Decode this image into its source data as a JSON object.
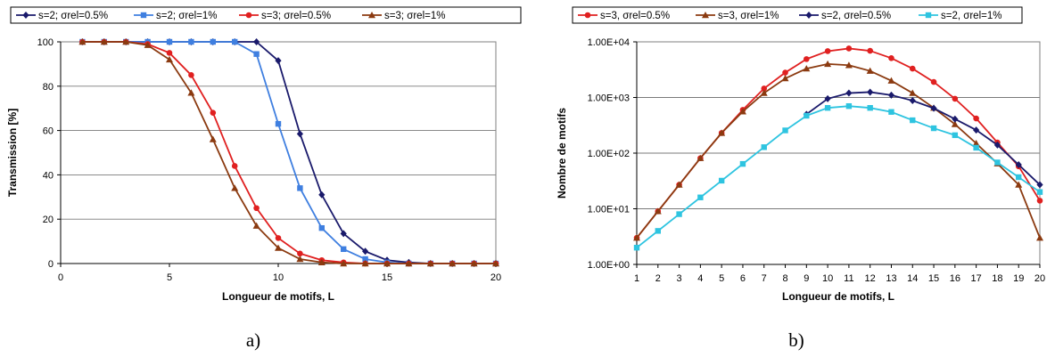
{
  "chart_data": [
    {
      "type": "line",
      "caption": "a)",
      "xlabel": "Longueur de motifs, L",
      "ylabel": "Transmission [%]",
      "xlim": [
        0,
        20
      ],
      "ylim": [
        0,
        100
      ],
      "xticks": [
        0,
        5,
        10,
        15,
        20
      ],
      "yticks": [
        0,
        20,
        40,
        60,
        80,
        100
      ],
      "grid": "horizontal",
      "legend_position": "top",
      "series": [
        {
          "name": "s=2; σrel=0.5%",
          "color": "#1a1a6b",
          "marker": "diamond",
          "x": [
            1,
            2,
            3,
            4,
            5,
            6,
            7,
            8,
            9,
            10,
            11,
            12,
            13,
            14,
            15,
            16,
            17,
            18,
            19,
            20
          ],
          "values": [
            100,
            100,
            100,
            100,
            100,
            100,
            100,
            100,
            100,
            91.5,
            58.5,
            31,
            13.5,
            5.5,
            1.5,
            0.5,
            0,
            0,
            0,
            0
          ]
        },
        {
          "name": "s=2; σrel=1%",
          "color": "#3f7fe0",
          "marker": "square",
          "x": [
            1,
            2,
            3,
            4,
            5,
            6,
            7,
            8,
            9,
            10,
            11,
            12,
            13,
            14,
            15,
            16,
            17,
            18,
            19,
            20
          ],
          "values": [
            100,
            100,
            100,
            100,
            100,
            100,
            100,
            100,
            94.5,
            63,
            34,
            16,
            6.5,
            2,
            0.5,
            0,
            0,
            0,
            0,
            0
          ]
        },
        {
          "name": "s=3; σrel=0.5%",
          "color": "#e02020",
          "marker": "circle",
          "x": [
            1,
            2,
            3,
            4,
            5,
            6,
            7,
            8,
            9,
            10,
            11,
            12,
            13,
            14,
            15,
            16,
            17,
            18,
            19,
            20
          ],
          "values": [
            100,
            100,
            100,
            99,
            95,
            85,
            68,
            44,
            25,
            11.5,
            4.5,
            1.5,
            0.5,
            0,
            0,
            0,
            0,
            0,
            0,
            0
          ]
        },
        {
          "name": "s=3; σrel=1%",
          "color": "#8b3a10",
          "marker": "triangle",
          "x": [
            1,
            2,
            3,
            4,
            5,
            6,
            7,
            8,
            9,
            10,
            11,
            12,
            13,
            14,
            15,
            16,
            17,
            18,
            19,
            20
          ],
          "values": [
            100,
            100,
            100,
            98.5,
            92,
            77,
            56,
            34,
            17,
            7,
            2,
            0.5,
            0,
            0,
            0,
            0,
            0,
            0,
            0,
            0
          ]
        }
      ]
    },
    {
      "type": "line",
      "caption": "b)",
      "xlabel": "Longueur de motifs, L",
      "ylabel": "Nombre de motifs",
      "yscale": "log",
      "xlim": [
        1,
        20
      ],
      "ylim": [
        1,
        10000
      ],
      "xticks": [
        1,
        2,
        3,
        4,
        5,
        6,
        7,
        8,
        9,
        10,
        11,
        12,
        13,
        14,
        15,
        16,
        17,
        18,
        19,
        20
      ],
      "yticks": [
        1,
        10,
        100,
        1000,
        10000
      ],
      "ytick_labels": [
        "1.00E+00",
        "1.00E+01",
        "1.00E+02",
        "1.00E+03",
        "1.00E+04"
      ],
      "grid": "horizontal",
      "legend_position": "top",
      "series": [
        {
          "name": "s=3, σrel=0.5%",
          "color": "#e02020",
          "marker": "circle",
          "x": [
            1,
            2,
            3,
            4,
            5,
            6,
            7,
            8,
            9,
            10,
            11,
            12,
            13,
            14,
            15,
            16,
            17,
            18,
            19,
            20
          ],
          "values": [
            3,
            9,
            27,
            81,
            230,
            600,
            1450,
            2800,
            4900,
            6800,
            7600,
            6900,
            5100,
            3300,
            1900,
            950,
            420,
            155,
            58,
            14
          ]
        },
        {
          "name": "s=3, σrel=1%",
          "color": "#8b3a10",
          "marker": "triangle",
          "x": [
            1,
            2,
            3,
            4,
            5,
            6,
            7,
            8,
            9,
            10,
            11,
            12,
            13,
            14,
            15,
            16,
            17,
            18,
            19,
            20
          ],
          "values": [
            3,
            9,
            27,
            81,
            230,
            560,
            1200,
            2200,
            3300,
            4000,
            3800,
            3000,
            2000,
            1200,
            650,
            330,
            150,
            65,
            27,
            3
          ]
        },
        {
          "name": "s=2, σrel=0.5%",
          "color": "#1a1a6b",
          "marker": "diamond",
          "x": [
            9,
            10,
            11,
            12,
            13,
            14,
            15,
            16,
            17,
            18,
            19,
            20
          ],
          "values": [
            500,
            950,
            1200,
            1250,
            1100,
            880,
            640,
            410,
            260,
            140,
            62,
            27
          ]
        },
        {
          "name": "s=2, σrel=1%",
          "color": "#2ec4e0",
          "marker": "square",
          "x": [
            1,
            2,
            3,
            4,
            5,
            6,
            7,
            8,
            9,
            10,
            11,
            12,
            13,
            14,
            15,
            16,
            17,
            18,
            19,
            20
          ],
          "values": [
            2,
            4,
            8,
            16,
            32,
            64,
            128,
            256,
            470,
            650,
            700,
            650,
            550,
            390,
            280,
            210,
            125,
            68,
            37,
            20
          ]
        }
      ]
    }
  ]
}
